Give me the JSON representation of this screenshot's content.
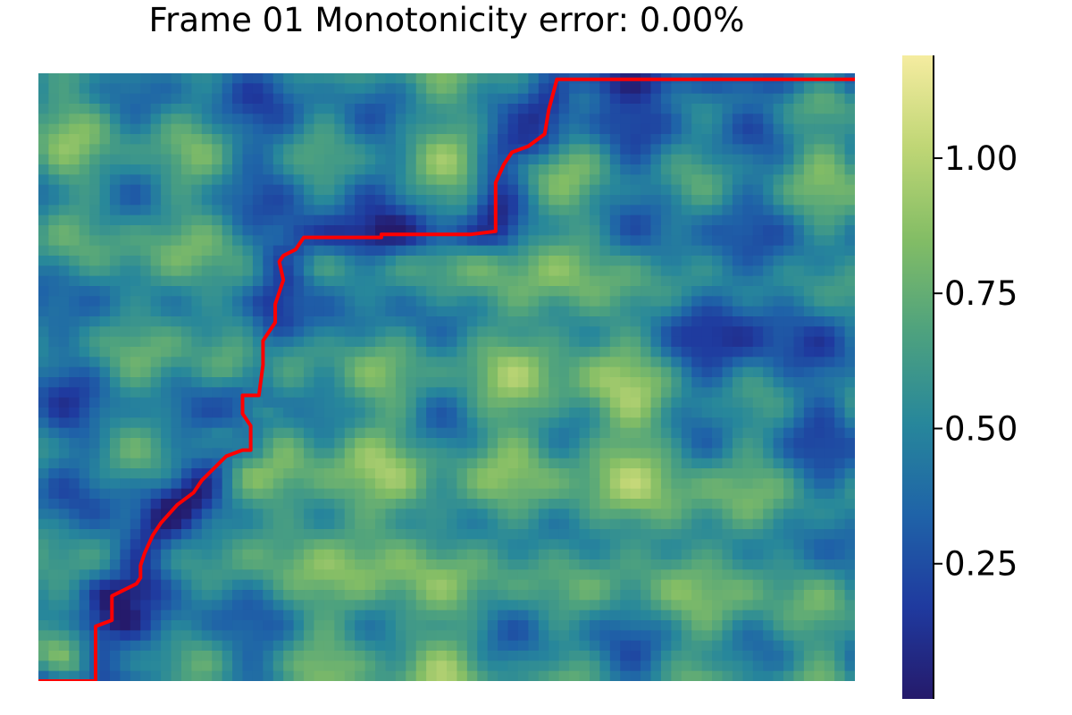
{
  "chart_data": {
    "type": "heatmap",
    "title": "Frame 01   Monotonicity error: 0.00%",
    "colormap": [
      "#251a6b",
      "#1f3a9f",
      "#1f63a8",
      "#27879b",
      "#4ea27e",
      "#83bd65",
      "#bfd675",
      "#f5eca0"
    ],
    "colorbar": {
      "min": 0.0,
      "max": 1.19,
      "ticks": [
        0.25,
        0.5,
        0.75,
        1.0
      ],
      "tick_labels": [
        "0.25",
        "0.50",
        "0.75",
        "1.00"
      ]
    },
    "grid": false,
    "axes_visible": false,
    "path": {
      "color": "#ff0000",
      "points": [
        [
          0.0,
          0.0
        ],
        [
          0.07,
          0.0
        ],
        [
          0.07,
          0.09
        ],
        [
          0.09,
          0.1
        ],
        [
          0.09,
          0.14
        ],
        [
          0.12,
          0.16
        ],
        [
          0.125,
          0.17
        ],
        [
          0.125,
          0.19
        ],
        [
          0.13,
          0.21
        ],
        [
          0.14,
          0.24
        ],
        [
          0.15,
          0.26
        ],
        [
          0.17,
          0.29
        ],
        [
          0.19,
          0.31
        ],
        [
          0.2,
          0.33
        ],
        [
          0.215,
          0.35
        ],
        [
          0.23,
          0.37
        ],
        [
          0.25,
          0.38
        ],
        [
          0.26,
          0.38
        ],
        [
          0.26,
          0.42
        ],
        [
          0.25,
          0.44
        ],
        [
          0.25,
          0.47
        ],
        [
          0.27,
          0.47
        ],
        [
          0.275,
          0.52
        ],
        [
          0.275,
          0.56
        ],
        [
          0.29,
          0.59
        ],
        [
          0.29,
          0.62
        ],
        [
          0.3,
          0.66
        ],
        [
          0.295,
          0.69
        ],
        [
          0.3,
          0.7
        ],
        [
          0.315,
          0.71
        ],
        [
          0.32,
          0.72
        ],
        [
          0.325,
          0.73
        ],
        [
          0.42,
          0.73
        ],
        [
          0.42,
          0.735
        ],
        [
          0.53,
          0.735
        ],
        [
          0.56,
          0.74
        ],
        [
          0.56,
          0.82
        ],
        [
          0.57,
          0.85
        ],
        [
          0.58,
          0.87
        ],
        [
          0.6,
          0.88
        ],
        [
          0.62,
          0.9
        ],
        [
          0.625,
          0.94
        ],
        [
          0.635,
          0.99
        ],
        [
          1.0,
          0.99
        ]
      ]
    }
  }
}
